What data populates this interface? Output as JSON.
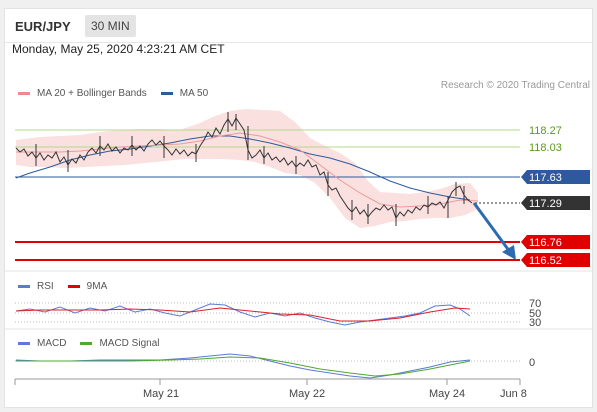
{
  "header": {
    "symbol": "EUR/JPY",
    "timeframe": "30 MIN"
  },
  "datetime": "Monday, May 25, 2020 4:23:21 AM CET",
  "legend": {
    "bollinger_label": "MA 20 + Bollinger Bands",
    "ma50_label": "MA 50",
    "research": "Research © 2020 Trading Central"
  },
  "levels": {
    "r2": "118.27",
    "r1": "118.03",
    "ma50_price": "117.63",
    "current": "117.29",
    "s1": "116.76",
    "s2": "116.52"
  },
  "rsi": {
    "label": "RSI",
    "signal_label": "9MA",
    "levels": [
      "70",
      "50",
      "30"
    ]
  },
  "macd": {
    "label": "MACD",
    "signal_label": "MACD Signal",
    "zero": "0"
  },
  "xaxis": [
    "May 21",
    "May 22",
    "May 24",
    "Jun 8"
  ],
  "colors": {
    "support": "#e00000",
    "resistance_line": "#b5d98a",
    "resistance_text": "#5c9a1b",
    "ma50": "#2d5a9c",
    "current": "#333333",
    "bollinger": "#f4a3a3",
    "rsi": "#5b7bd5",
    "macd": "#5b7bd5",
    "macd_signal": "#4fa82f",
    "arrow": "#2d6bb0"
  }
}
